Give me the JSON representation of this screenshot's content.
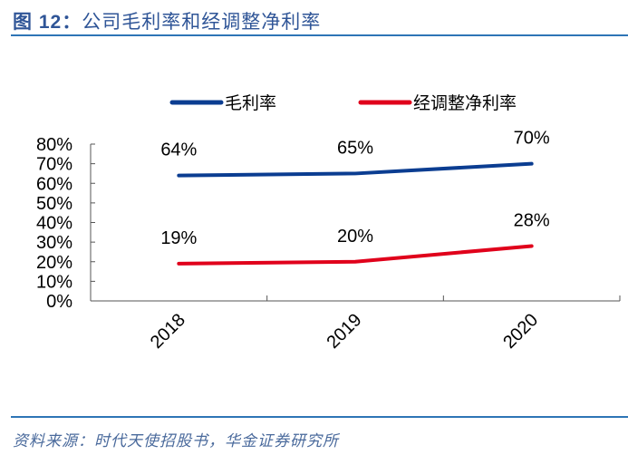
{
  "title": {
    "prefix": "图 12：",
    "text": "公司毛利率和经调整净利率"
  },
  "source": "资料来源：时代天使招股书，华金证券研究所",
  "chart_data": {
    "type": "line",
    "categories": [
      "2018",
      "2019",
      "2020"
    ],
    "series": [
      {
        "name": "毛利率",
        "values": [
          64,
          65,
          70
        ],
        "labels": [
          "64%",
          "65%",
          "70%"
        ],
        "color": "#0b3d91"
      },
      {
        "name": "经调整净利率",
        "values": [
          19,
          20,
          28
        ],
        "labels": [
          "19%",
          "20%",
          "28%"
        ],
        "color": "#e0001b"
      }
    ],
    "ylim": [
      0,
      80
    ],
    "yticks": [
      "0%",
      "10%",
      "20%",
      "30%",
      "40%",
      "50%",
      "60%",
      "70%",
      "80%"
    ],
    "legend": "top",
    "grid": false
  }
}
